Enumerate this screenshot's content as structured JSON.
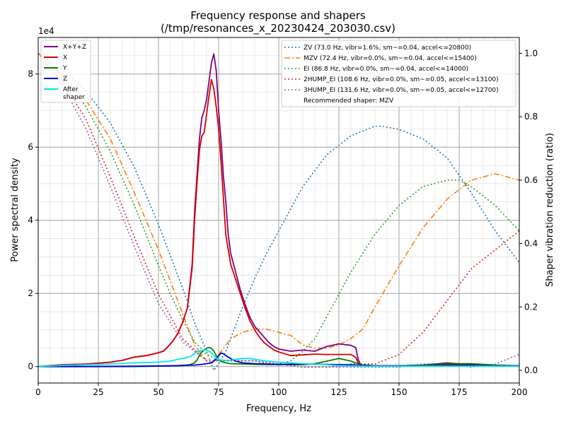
{
  "chart_data": {
    "type": "line",
    "title": [
      "Frequency response and shapers",
      "(/tmp/resonances_x_20230424_203030.csv)"
    ],
    "xlabel": "Frequency, Hz",
    "ylabel": "Power spectral density",
    "y2label": "Shaper vibration reduction (ratio)",
    "y_offset_label": "1e4",
    "xlim": [
      0,
      200
    ],
    "ylim": [
      -0.45,
      9.0
    ],
    "y2lim": [
      -0.04,
      1.05
    ],
    "x_ticks": [
      "0",
      "25",
      "50",
      "75",
      "100",
      "125",
      "150",
      "175",
      "200"
    ],
    "y_ticks": [
      "0",
      "2",
      "4",
      "6",
      "8"
    ],
    "y2_ticks": [
      "0.0",
      "0.2",
      "0.4",
      "0.6",
      "0.8",
      "1.0"
    ],
    "grid": true,
    "psd_legend_placement": "upper-left",
    "shaper_legend_placement": "upper-right",
    "recommended_text": "Recommended shaper: MZV",
    "psd_series": [
      {
        "name": "X+Y+Z",
        "color": "#800080",
        "x": [
          0,
          10,
          20,
          30,
          35,
          40,
          45,
          50,
          52,
          54,
          56,
          58,
          60,
          62,
          64,
          65,
          66,
          67,
          68,
          69,
          70,
          71,
          72,
          73,
          74,
          75,
          76,
          77,
          78,
          79,
          80,
          82,
          84,
          86,
          88,
          90,
          92,
          94,
          96,
          98,
          100,
          105,
          110,
          115,
          120,
          125,
          130,
          132,
          133,
          134,
          140,
          150,
          160,
          170,
          180,
          190,
          200
        ],
        "y": [
          0,
          0.05,
          0.07,
          0.12,
          0.17,
          0.26,
          0.3,
          0.38,
          0.42,
          0.55,
          0.7,
          0.9,
          1.2,
          1.6,
          2.8,
          4.2,
          5.2,
          6.2,
          6.8,
          7.0,
          7.3,
          7.8,
          8.3,
          8.55,
          8.1,
          7.0,
          6.2,
          5.2,
          4.5,
          3.6,
          3.1,
          2.6,
          2.1,
          1.7,
          1.35,
          1.1,
          0.95,
          0.8,
          0.65,
          0.55,
          0.48,
          0.42,
          0.45,
          0.42,
          0.55,
          0.62,
          0.58,
          0.52,
          0.2,
          0.05,
          0.02,
          0.02,
          0.04,
          0.1,
          0.05,
          0.02,
          0.02
        ]
      },
      {
        "name": "X",
        "color": "#d40000",
        "x": [
          0,
          10,
          20,
          30,
          35,
          40,
          45,
          50,
          52,
          54,
          56,
          58,
          60,
          62,
          64,
          65,
          66,
          67,
          68,
          69,
          70,
          71,
          72,
          73,
          74,
          75,
          76,
          77,
          78,
          79,
          80,
          82,
          84,
          86,
          88,
          90,
          92,
          94,
          96,
          98,
          100,
          105,
          110,
          115,
          120,
          125,
          130,
          132,
          133,
          134,
          140,
          150,
          160,
          170,
          180,
          190,
          200
        ],
        "y": [
          0,
          0.05,
          0.07,
          0.12,
          0.17,
          0.26,
          0.3,
          0.38,
          0.42,
          0.55,
          0.7,
          0.9,
          1.2,
          1.6,
          2.7,
          4.0,
          5.0,
          5.9,
          6.3,
          6.4,
          6.9,
          7.4,
          7.85,
          7.6,
          7.1,
          6.5,
          5.6,
          4.6,
          3.6,
          3.2,
          2.8,
          2.4,
          2.0,
          1.6,
          1.25,
          1.0,
          0.8,
          0.65,
          0.55,
          0.45,
          0.4,
          0.3,
          0.32,
          0.34,
          0.33,
          0.33,
          0.33,
          0.25,
          0.1,
          0.03,
          0.01,
          0.01,
          0.02,
          0.05,
          0.04,
          0.02,
          0.01
        ]
      },
      {
        "name": "Y",
        "color": "#008000",
        "x": [
          0,
          20,
          40,
          55,
          60,
          63,
          65,
          66,
          67,
          68,
          69,
          70,
          71,
          72,
          73,
          74,
          75,
          76,
          78,
          80,
          85,
          90,
          100,
          110,
          115,
          120,
          125,
          130,
          134,
          140,
          150,
          160,
          170,
          180,
          190,
          200
        ],
        "y": [
          0,
          0,
          0,
          0.02,
          0.03,
          0.05,
          0.1,
          0.18,
          0.3,
          0.4,
          0.45,
          0.5,
          0.52,
          0.5,
          0.42,
          0.3,
          0.2,
          0.14,
          0.1,
          0.08,
          0.07,
          0.06,
          0.05,
          0.05,
          0.08,
          0.15,
          0.22,
          0.15,
          0.05,
          0.02,
          0.02,
          0.04,
          0.08,
          0.08,
          0.04,
          0.02
        ]
      },
      {
        "name": "Z",
        "color": "#0000cc",
        "x": [
          0,
          20,
          40,
          55,
          60,
          65,
          68,
          70,
          72,
          74,
          75,
          76,
          77,
          78,
          80,
          82,
          85,
          90,
          95,
          100,
          110,
          120,
          130,
          134,
          140,
          150,
          160,
          170,
          180,
          190,
          200
        ],
        "y": [
          0,
          0,
          0.01,
          0.02,
          0.03,
          0.04,
          0.06,
          0.08,
          0.1,
          0.2,
          0.3,
          0.37,
          0.35,
          0.3,
          0.22,
          0.15,
          0.1,
          0.08,
          0.07,
          0.06,
          0.07,
          0.06,
          0.05,
          0.03,
          0.02,
          0.02,
          0.02,
          0.03,
          0.03,
          0.02,
          0.02
        ]
      },
      {
        "name": "After\nshaper",
        "color": "#00e5ee",
        "x": [
          0,
          10,
          20,
          30,
          40,
          50,
          55,
          58,
          60,
          62,
          64,
          66,
          67,
          68,
          69,
          70,
          71,
          72,
          73,
          74,
          75,
          76,
          78,
          80,
          82,
          85,
          88,
          90,
          95,
          100,
          110,
          120,
          125,
          130,
          135,
          140,
          150,
          160,
          170,
          180,
          190,
          200
        ],
        "y": [
          0,
          0.03,
          0.05,
          0.07,
          0.1,
          0.12,
          0.15,
          0.2,
          0.22,
          0.25,
          0.3,
          0.4,
          0.42,
          0.45,
          0.45,
          0.45,
          0.42,
          0.38,
          0.3,
          0.24,
          0.2,
          0.18,
          0.17,
          0.17,
          0.2,
          0.22,
          0.22,
          0.2,
          0.15,
          0.12,
          0.08,
          0.05,
          0.03,
          0.02,
          0.01,
          0.01,
          0.01,
          0.01,
          0.01,
          0.01,
          0.01,
          0.01
        ]
      }
    ],
    "shaper_series": [
      {
        "name": "ZV (73.0 Hz, vibr=1.6%, sm~=0.04, accel<=20800)",
        "color": "#1f77b4",
        "dash": "2,3",
        "x": [
          0,
          10,
          20,
          30,
          40,
          50,
          55,
          60,
          65,
          70,
          73,
          75,
          78,
          80,
          85,
          90,
          95,
          100,
          110,
          120,
          130,
          140,
          143,
          150,
          160,
          170,
          180,
          190,
          200
        ],
        "y": [
          1.0,
          0.95,
          0.88,
          0.78,
          0.64,
          0.46,
          0.36,
          0.26,
          0.15,
          0.06,
          0.0,
          0.02,
          0.06,
          0.1,
          0.2,
          0.29,
          0.37,
          0.44,
          0.58,
          0.68,
          0.74,
          0.77,
          0.77,
          0.76,
          0.73,
          0.67,
          0.56,
          0.44,
          0.34
        ]
      },
      {
        "name": "MZV (72.4 Hz, vibr=0.0%, sm~=0.04, accel<=15400)",
        "color": "#ff7f0e",
        "dash": "8,3,2,3",
        "x": [
          0,
          10,
          20,
          30,
          40,
          50,
          55,
          60,
          65,
          70,
          72,
          75,
          80,
          85,
          90,
          95,
          100,
          105,
          110,
          115,
          120,
          125,
          130,
          135,
          140,
          150,
          160,
          170,
          180,
          190,
          200
        ],
        "y": [
          1.0,
          0.93,
          0.85,
          0.73,
          0.56,
          0.38,
          0.28,
          0.18,
          0.08,
          0.03,
          0.02,
          0.05,
          0.1,
          0.12,
          0.13,
          0.13,
          0.12,
          0.11,
          0.08,
          0.07,
          0.07,
          0.08,
          0.1,
          0.13,
          0.2,
          0.33,
          0.45,
          0.54,
          0.6,
          0.62,
          0.6
        ]
      },
      {
        "name": "EI (86.8 Hz, vibr=0.0%, sm~=0.04, accel<=14000)",
        "color": "#2ca02c",
        "dash": "2,3",
        "x": [
          0,
          10,
          20,
          30,
          40,
          50,
          55,
          60,
          65,
          70,
          75,
          80,
          85,
          90,
          95,
          100,
          105,
          110,
          115,
          120,
          130,
          140,
          150,
          160,
          170,
          175,
          180,
          190,
          200
        ],
        "y": [
          1.0,
          0.93,
          0.83,
          0.69,
          0.52,
          0.33,
          0.24,
          0.16,
          0.09,
          0.05,
          0.03,
          0.03,
          0.03,
          0.03,
          0.02,
          0.02,
          0.03,
          0.06,
          0.1,
          0.17,
          0.31,
          0.43,
          0.52,
          0.58,
          0.6,
          0.6,
          0.58,
          0.52,
          0.44
        ]
      },
      {
        "name": "2HUMP_EI (108.6 Hz, vibr=0.0%, sm~=0.05, accel<=13100)",
        "color": "#d62728",
        "dash": "2,3",
        "x": [
          0,
          10,
          20,
          30,
          40,
          50,
          60,
          70,
          80,
          90,
          100,
          110,
          120,
          130,
          140,
          150,
          160,
          170,
          180,
          190,
          200
        ],
        "y": [
          1.0,
          0.91,
          0.79,
          0.61,
          0.42,
          0.24,
          0.1,
          0.03,
          0.03,
          0.03,
          0.02,
          0.01,
          0.01,
          0.02,
          0.02,
          0.05,
          0.12,
          0.22,
          0.32,
          0.38,
          0.44
        ]
      },
      {
        "name": "3HUMP_EI (131.6 Hz, vibr=0.0%, sm~=0.05, accel<=12700)",
        "color": "#9467bd",
        "dash": "2,3",
        "x": [
          0,
          10,
          20,
          30,
          40,
          50,
          60,
          70,
          80,
          90,
          100,
          110,
          120,
          130,
          140,
          150,
          160,
          170,
          180,
          190,
          200
        ],
        "y": [
          1.0,
          0.9,
          0.76,
          0.58,
          0.39,
          0.21,
          0.09,
          0.03,
          0.03,
          0.03,
          0.02,
          0.01,
          0.01,
          0.01,
          0.01,
          0.01,
          0.02,
          0.02,
          0.01,
          0.02,
          0.05
        ]
      }
    ]
  }
}
